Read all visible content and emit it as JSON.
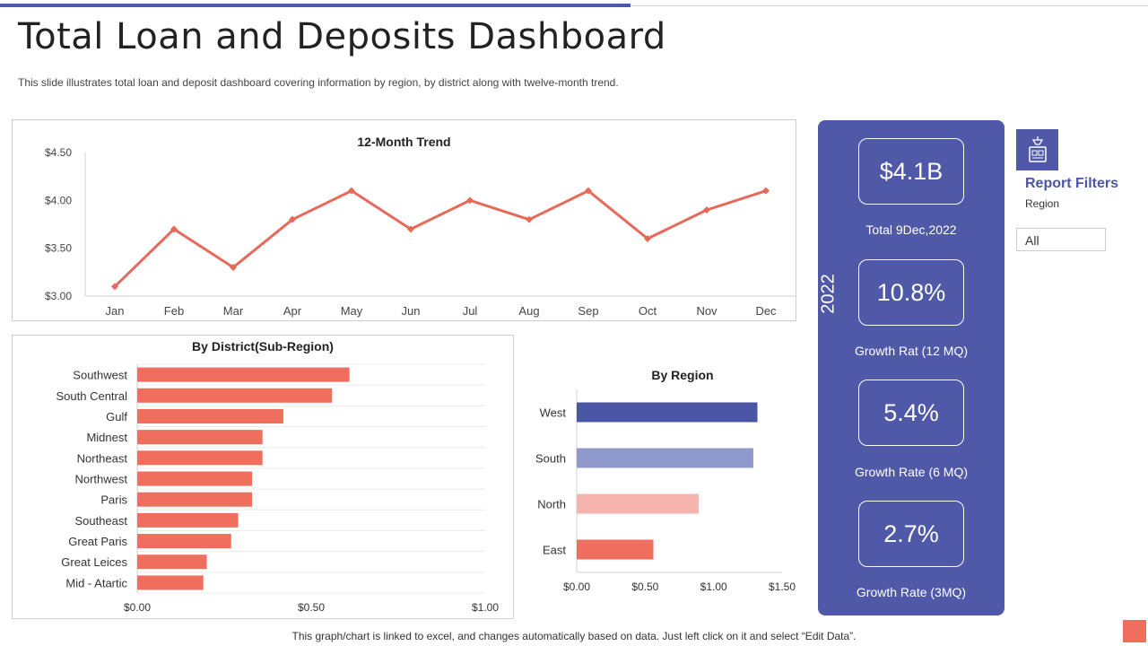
{
  "page": {
    "title": "Total Loan and Deposits Dashboard",
    "subtitle": "This slide illustrates total loan and deposit dashboard covering information by region, by district along with twelve-month trend.",
    "footer": "This graph/chart is linked to excel,  and changes automatically based on data. Just left click on it and select “Edit Data”."
  },
  "colors": {
    "accent": "#5059a8",
    "line": "#e8685a",
    "bar": "#f06e5e",
    "west": "#4b55a5",
    "south": "#9099cc",
    "north": "#f7b3ad",
    "east": "#f06e5e"
  },
  "kpis": {
    "year": "2022",
    "items": [
      {
        "value": "$4.1B",
        "label": "Total 9Dec,2022"
      },
      {
        "value": "10.8%",
        "label": "Growth Rat (12 MQ)"
      },
      {
        "value": "5.4%",
        "label": "Growth Rate (6 MQ)"
      },
      {
        "value": "2.7%",
        "label": "Growth Rate (3MQ)"
      }
    ]
  },
  "filters": {
    "icon": "filter-report-icon",
    "title": "Report Filters",
    "label": "Region",
    "selected": "All"
  },
  "chart_data": [
    {
      "type": "line",
      "title": "12-Month Trend",
      "categories": [
        "Jan",
        "Feb",
        "Mar",
        "Apr",
        "May",
        "Jun",
        "Jul",
        "Aug",
        "Sep",
        "Oct",
        "Nov",
        "Dec"
      ],
      "values": [
        3.1,
        3.7,
        3.3,
        3.8,
        4.1,
        3.7,
        4.0,
        3.8,
        4.1,
        3.6,
        3.9,
        4.1
      ],
      "ylim": [
        3.0,
        4.5
      ],
      "yticks": [
        3.0,
        3.5,
        4.0,
        4.5
      ],
      "ytick_labels": [
        "$3.00",
        "$3.50",
        "$4.00",
        "$4.50"
      ],
      "xlabel": "",
      "ylabel": "",
      "grid": false
    },
    {
      "type": "bar",
      "orientation": "horizontal",
      "title": "By District(Sub-Region)",
      "categories": [
        "Southwest",
        "South Central",
        "Gulf",
        "Midnest",
        "Northeast",
        "Northwest",
        "Paris",
        "Southeast",
        "Great Paris",
        "Great Leices",
        "Mid - Atartic"
      ],
      "values": [
        0.61,
        0.56,
        0.42,
        0.36,
        0.36,
        0.33,
        0.33,
        0.29,
        0.27,
        0.2,
        0.19
      ],
      "xlim": [
        0,
        1.0
      ],
      "xticks": [
        0,
        0.5,
        1.0
      ],
      "xtick_labels": [
        "$0.00",
        "$0.50",
        "$1.00"
      ],
      "grid": true
    },
    {
      "type": "bar",
      "orientation": "horizontal",
      "title": "By Region",
      "categories": [
        "West",
        "South",
        "North",
        "East"
      ],
      "values": [
        1.32,
        1.29,
        0.89,
        0.56
      ],
      "xlim": [
        0,
        1.5
      ],
      "xticks": [
        0,
        0.5,
        1.0,
        1.5
      ],
      "xtick_labels": [
        "$0.00",
        "$0.50",
        "$1.00",
        "$1.50"
      ],
      "grid": false
    }
  ]
}
